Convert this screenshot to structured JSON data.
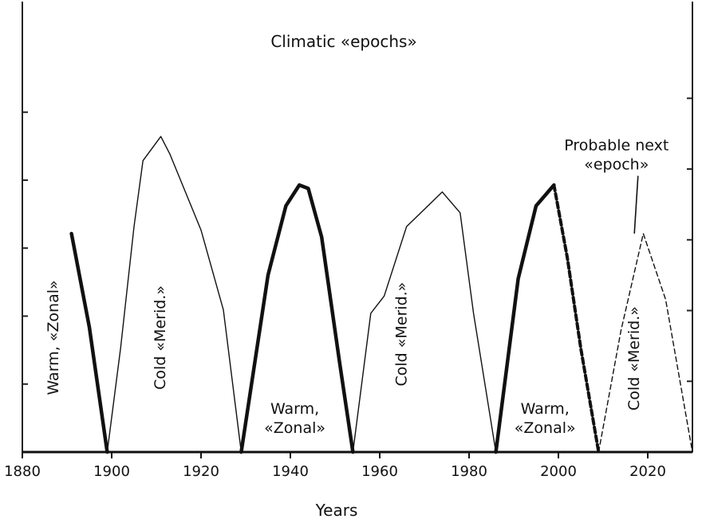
{
  "chart_data": {
    "type": "line",
    "title": "Climatic «epochs»",
    "xlabel": "Years",
    "ylabel": "",
    "xlim": [
      1880,
      2030
    ],
    "ylim": [
      0,
      100
    ],
    "x_ticks": [
      1880,
      1900,
      1920,
      1940,
      1960,
      1980,
      2000,
      2020
    ],
    "y_ticks_right": [
      20,
      40,
      60,
      80,
      100
    ],
    "y_ticks_left": [
      20,
      40,
      60,
      80,
      100
    ],
    "grid": false,
    "legend": "none",
    "series": [
      {
        "style": "thick-solid",
        "values": [
          {
            "x": 1891,
            "y": 63
          },
          {
            "x": 1895,
            "y": 36
          },
          {
            "x": 1899,
            "y": 0
          }
        ]
      },
      {
        "style": "thin-solid",
        "values": [
          {
            "x": 1899,
            "y": 0
          },
          {
            "x": 1902,
            "y": 30
          },
          {
            "x": 1905,
            "y": 65
          },
          {
            "x": 1907,
            "y": 84
          },
          {
            "x": 1911,
            "y": 91
          },
          {
            "x": 1913,
            "y": 86
          },
          {
            "x": 1920,
            "y": 64
          },
          {
            "x": 1925,
            "y": 41
          },
          {
            "x": 1929,
            "y": 0
          }
        ]
      },
      {
        "style": "thick-solid",
        "values": [
          {
            "x": 1929,
            "y": 0
          },
          {
            "x": 1935,
            "y": 51
          },
          {
            "x": 1939,
            "y": 71
          },
          {
            "x": 1942,
            "y": 77
          },
          {
            "x": 1944,
            "y": 76
          },
          {
            "x": 1947,
            "y": 62
          },
          {
            "x": 1951,
            "y": 26
          },
          {
            "x": 1954,
            "y": 0
          }
        ]
      },
      {
        "style": "thin-solid",
        "values": [
          {
            "x": 1954,
            "y": 0
          },
          {
            "x": 1958,
            "y": 40
          },
          {
            "x": 1961,
            "y": 45
          },
          {
            "x": 1966,
            "y": 65
          },
          {
            "x": 1974,
            "y": 75
          },
          {
            "x": 1978,
            "y": 69
          },
          {
            "x": 1981,
            "y": 40
          },
          {
            "x": 1986,
            "y": 0
          }
        ]
      },
      {
        "style": "thick-solid",
        "values": [
          {
            "x": 1986,
            "y": 0
          },
          {
            "x": 1991,
            "y": 50
          },
          {
            "x": 1995,
            "y": 71
          },
          {
            "x": 1999,
            "y": 77
          }
        ]
      },
      {
        "style": "thick-dashed",
        "values": [
          {
            "x": 1999,
            "y": 77
          },
          {
            "x": 2002,
            "y": 56
          },
          {
            "x": 2005,
            "y": 30
          },
          {
            "x": 2009,
            "y": 0
          }
        ]
      },
      {
        "style": "thin-dashed",
        "values": [
          {
            "x": 2009,
            "y": 0
          },
          {
            "x": 2014,
            "y": 35
          },
          {
            "x": 2019,
            "y": 63
          },
          {
            "x": 2024,
            "y": 44
          },
          {
            "x": 2030,
            "y": 0
          }
        ]
      }
    ],
    "annotations": [
      {
        "text": "Warm, «Zonal»",
        "x": 1888,
        "y": 33,
        "rotation": -90
      },
      {
        "text": "Cold «Merid.»",
        "x": 1912,
        "y": 33,
        "rotation": -90
      },
      {
        "lines": [
          "Warm,",
          "«Zonal»"
        ],
        "x": 1941,
        "y": 11
      },
      {
        "text": "Cold «Merid.»",
        "x": 1966,
        "y": 34,
        "rotation": -90
      },
      {
        "lines": [
          "Warm,",
          "«Zonal»"
        ],
        "x": 1997,
        "y": 11
      },
      {
        "text": "Cold «Merid.»",
        "x": 2018,
        "y": 27,
        "rotation": -90
      },
      {
        "lines": [
          "Probable next",
          "«epoch»"
        ],
        "x": 2013,
        "y": 87,
        "pointer_to": {
          "x": 2017,
          "y": 63
        }
      }
    ]
  }
}
